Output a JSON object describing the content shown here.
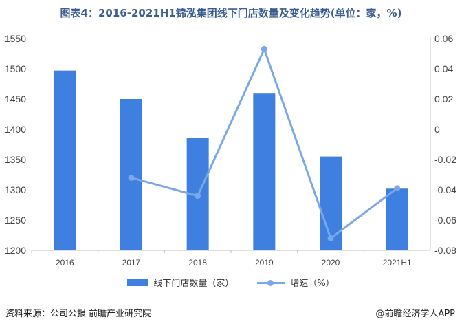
{
  "title": "图表4：2016-2021H1锦泓集团线下门店数量及变化趋势(单位：家，%)",
  "legend": {
    "bar_label": "线下门店数量（家）",
    "line_label": "增速（%）"
  },
  "footer": {
    "source": "资料来源：公司公报 前瞻产业研究院",
    "brand": "@前瞻经济学人APP"
  },
  "colors": {
    "bar": "#3f7fe0",
    "line": "#7aa7e6"
  },
  "chart_data": {
    "type": "bar",
    "categories": [
      "2016",
      "2017",
      "2018",
      "2019",
      "2020",
      "2021H1"
    ],
    "series": [
      {
        "name": "线下门店数量（家）",
        "type": "bar",
        "axis": "left",
        "values": [
          1497,
          1450,
          1386,
          1460,
          1355,
          1302
        ]
      },
      {
        "name": "增速（%）",
        "type": "line",
        "axis": "right",
        "values": [
          null,
          -0.032,
          -0.044,
          0.053,
          -0.072,
          -0.039
        ]
      }
    ],
    "y_left": {
      "min": 1200,
      "max": 1550,
      "ticks": [
        1200,
        1250,
        1300,
        1350,
        1400,
        1450,
        1500,
        1550
      ]
    },
    "y_right": {
      "min": -0.08,
      "max": 0.06,
      "ticks": [
        -0.08,
        -0.06,
        -0.04,
        -0.02,
        0,
        0.02,
        0.04,
        0.06
      ],
      "tick_labels": [
        "-0.08",
        "-0.06",
        "-0.04",
        "-0.02",
        "0",
        "0.02",
        "0.04",
        "0.06"
      ]
    },
    "grid": false,
    "legend_position": "bottom"
  }
}
